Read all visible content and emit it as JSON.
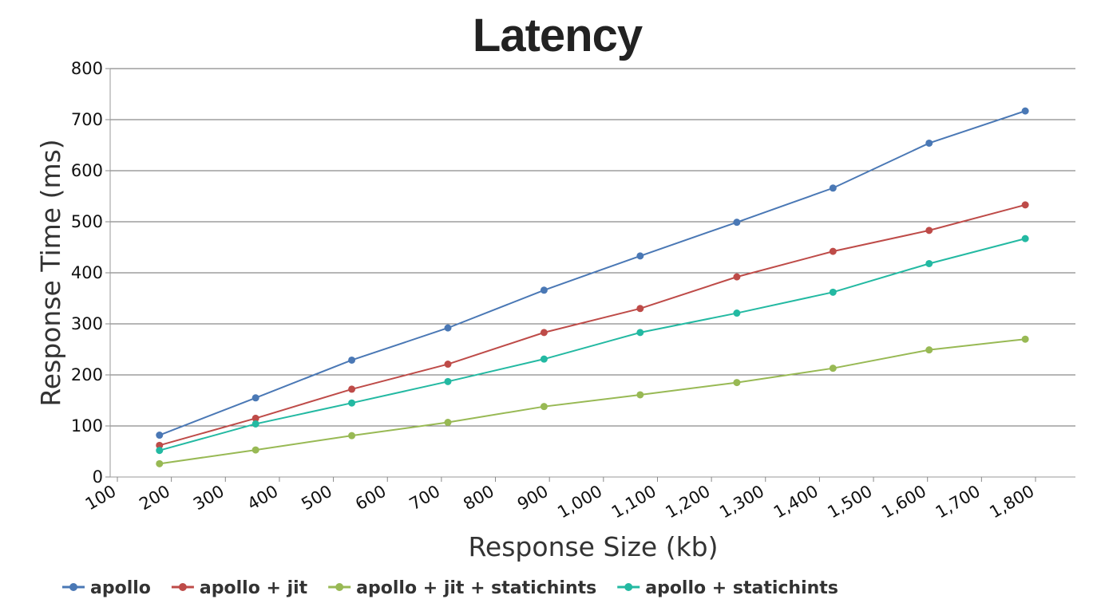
{
  "chart_data": {
    "type": "line",
    "title": "Latency",
    "xlabel": "Response Size (kb)",
    "ylabel": "Response Time (ms)",
    "xlim": [
      100,
      1800
    ],
    "ylim": [
      0,
      800
    ],
    "x_ticks": [
      "100",
      "200",
      "300",
      "400",
      "500",
      "600",
      "700",
      "800",
      "900",
      "1,000",
      "1,100",
      "1,200",
      "1,300",
      "1,400",
      "1,500",
      "1,600",
      "1,700",
      "1,800"
    ],
    "y_ticks": [
      "0",
      "100",
      "200",
      "300",
      "400",
      "500",
      "600",
      "700",
      "800"
    ],
    "grid": "horizontal",
    "legend_position": "bottom-left",
    "x": [
      178,
      356,
      534,
      712,
      890,
      1068,
      1247,
      1425,
      1603,
      1781
    ],
    "series": [
      {
        "name": "apollo",
        "color": "#4a78b5",
        "values": [
          82,
          155,
          229,
          292,
          366,
          433,
          499,
          566,
          654,
          717
        ]
      },
      {
        "name": "apollo + jit",
        "color": "#be4b48",
        "values": [
          62,
          115,
          172,
          221,
          283,
          330,
          392,
          442,
          483,
          533
        ]
      },
      {
        "name": "apollo + jit + statichints",
        "color": "#98b954",
        "values": [
          26,
          53,
          81,
          107,
          138,
          161,
          185,
          213,
          249,
          270
        ]
      },
      {
        "name": "apollo + statichints",
        "color": "#23b9a2",
        "values": [
          52,
          104,
          145,
          187,
          231,
          283,
          321,
          362,
          418,
          467
        ]
      }
    ]
  }
}
